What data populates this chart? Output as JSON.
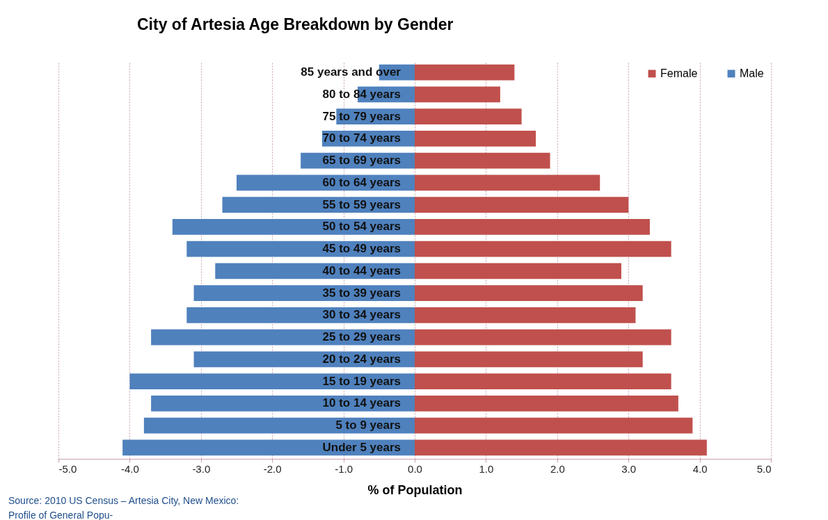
{
  "chart_data": {
    "type": "bar",
    "orientation": "horizontal",
    "stacked": true,
    "title": "City of Artesia Age Breakdown by Gender",
    "xlabel": "% of Population",
    "categories": [
      "85 years and over",
      "80 to 84 years",
      "75 to 79 years",
      "70 to 74 years",
      "65 to 69 years",
      "60 to 64 years",
      "55 to 59 years",
      "50 to 54 years",
      "45 to 49 years",
      "40 to 44 years",
      "35 to 39 years",
      "30 to 34 years",
      "25 to 29 years",
      "20 to 24 years",
      "15 to 19 years",
      "10 to 14 years",
      "5 to 9 years",
      "Under 5 years"
    ],
    "series": [
      {
        "name": "Female",
        "color": "#c0504d",
        "values": [
          1.4,
          1.2,
          1.5,
          1.7,
          1.9,
          2.6,
          3.0,
          3.3,
          3.6,
          2.9,
          3.2,
          3.1,
          3.6,
          3.2,
          3.6,
          3.7,
          3.9,
          4.1
        ]
      },
      {
        "name": "Male",
        "color": "#4f81bd",
        "values": [
          -0.5,
          -0.8,
          -1.1,
          -1.3,
          -1.6,
          -2.5,
          -2.7,
          -3.4,
          -3.2,
          -2.8,
          -3.1,
          -3.2,
          -3.7,
          -3.1,
          -4.0,
          -3.7,
          -3.8,
          -4.1
        ]
      }
    ],
    "xlim": [
      -5,
      5
    ],
    "xticks": [
      {
        "value": -5,
        "label": "-5.0"
      },
      {
        "value": -4,
        "label": "-4.0"
      },
      {
        "value": -3,
        "label": "-3.0"
      },
      {
        "value": -2,
        "label": "-2.0"
      },
      {
        "value": -1,
        "label": "-1.0"
      },
      {
        "value": 0,
        "label": "0.0"
      },
      {
        "value": 1,
        "label": "1.0"
      },
      {
        "value": 2,
        "label": "2.0"
      },
      {
        "value": 3,
        "label": "3.0"
      },
      {
        "value": 4,
        "label": "4.0"
      },
      {
        "value": 5,
        "label": "5.0"
      }
    ],
    "grid": "x",
    "legend": "top right",
    "annotations": [
      "Source: 2010 US    Census – Artesia City, New Mexico:",
      "Profile of General    Popu-"
    ]
  }
}
